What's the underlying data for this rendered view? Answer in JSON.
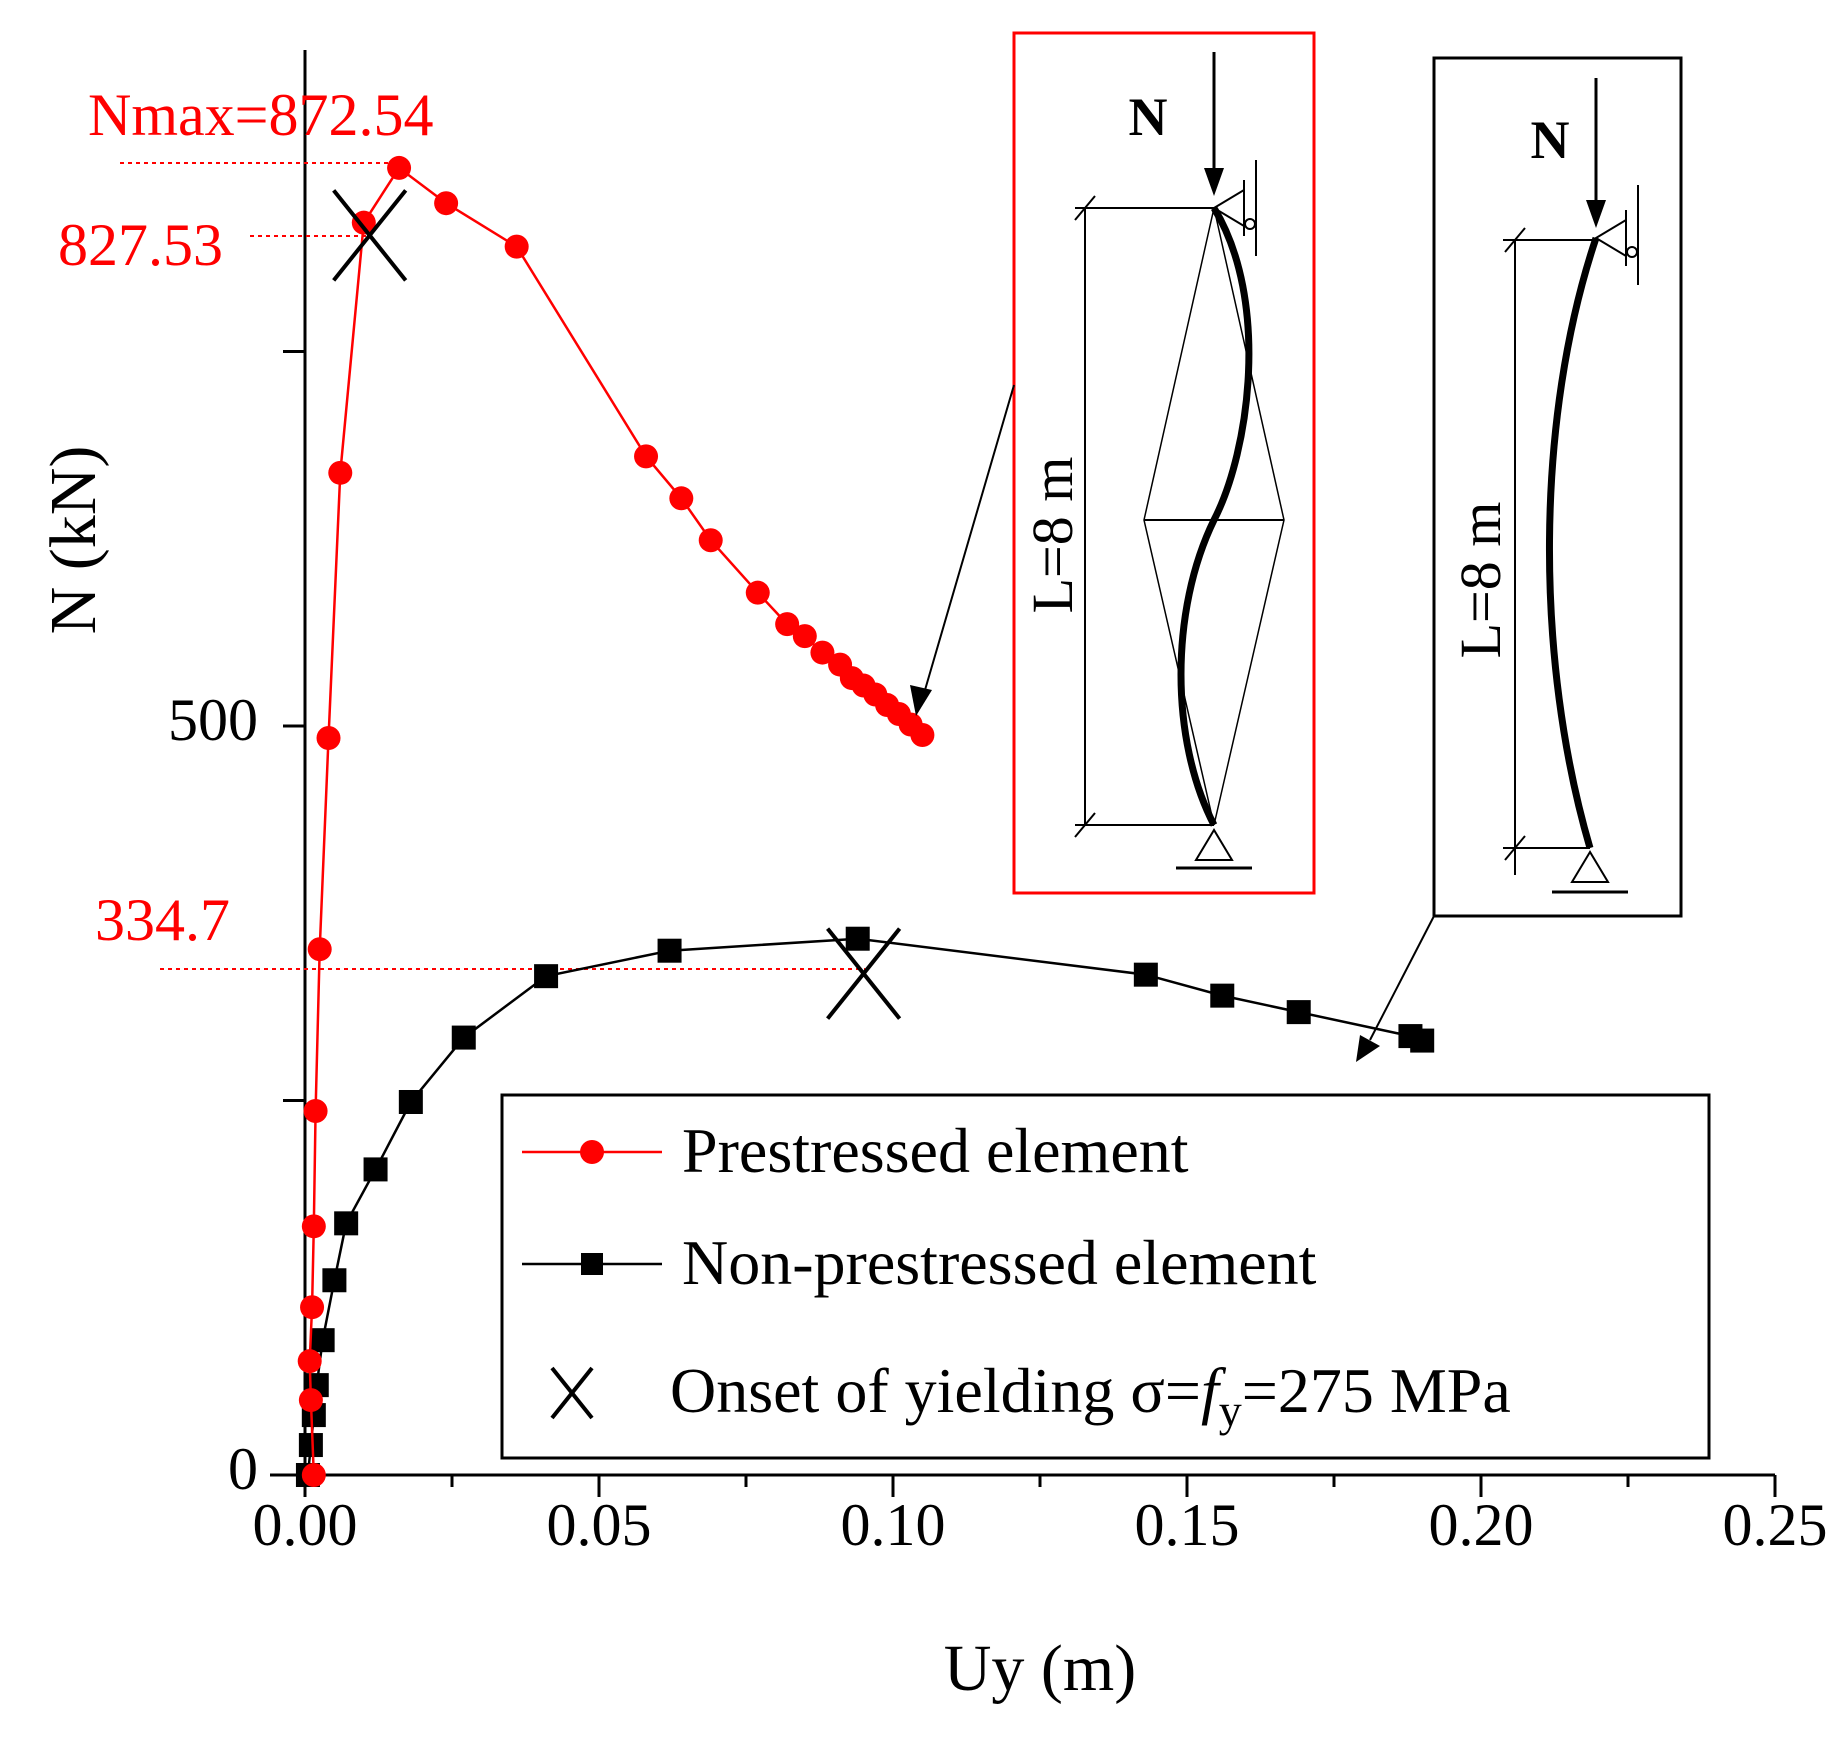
{
  "chart_data": {
    "type": "line",
    "xlabel": "Uy (m)",
    "ylabel": "N (kN)",
    "xlim": [
      0,
      0.25
    ],
    "ylim": [
      0,
      1000
    ],
    "x_ticks": [
      "0.00",
      "0.05",
      "0.10",
      "0.15",
      "0.20",
      "0.25"
    ],
    "y_ticks": [
      "0",
      "500"
    ],
    "series": [
      {
        "name": "Prestressed element",
        "color": "#ff0000",
        "marker": "circle",
        "points": [
          [
            0.0015,
            0
          ],
          [
            0.001,
            50
          ],
          [
            0.0008,
            76
          ],
          [
            0.0012,
            112
          ],
          [
            0.0015,
            166
          ],
          [
            0.0018,
            243
          ],
          [
            0.0025,
            351
          ],
          [
            0.004,
            492
          ],
          [
            0.006,
            669
          ],
          [
            0.01,
            836
          ],
          [
            0.016,
            872.54
          ],
          [
            0.024,
            849
          ],
          [
            0.036,
            820
          ],
          [
            0.058,
            680
          ],
          [
            0.064,
            652
          ],
          [
            0.069,
            624
          ],
          [
            0.077,
            589
          ],
          [
            0.082,
            568
          ],
          [
            0.085,
            560
          ],
          [
            0.088,
            549
          ],
          [
            0.091,
            541
          ],
          [
            0.093,
            532
          ],
          [
            0.095,
            527
          ],
          [
            0.097,
            521
          ],
          [
            0.099,
            514
          ],
          [
            0.101,
            508
          ],
          [
            0.103,
            501
          ],
          [
            0.105,
            494
          ]
        ]
      },
      {
        "name": "Non-prestressed element",
        "color": "#000000",
        "marker": "square",
        "points": [
          [
            0.0005,
            0
          ],
          [
            0.001,
            20
          ],
          [
            0.0015,
            40
          ],
          [
            0.002,
            60
          ],
          [
            0.003,
            90
          ],
          [
            0.005,
            130
          ],
          [
            0.007,
            168
          ],
          [
            0.012,
            204
          ],
          [
            0.018,
            249
          ],
          [
            0.027,
            292
          ],
          [
            0.041,
            333
          ],
          [
            0.062,
            350
          ],
          [
            0.094,
            358
          ],
          [
            0.143,
            334
          ],
          [
            0.156,
            320
          ],
          [
            0.169,
            309
          ],
          [
            0.188,
            293
          ],
          [
            0.19,
            290
          ]
        ]
      }
    ],
    "yield_points": [
      {
        "x": 0.011,
        "y": 827.53,
        "label": "827.53"
      },
      {
        "x": 0.095,
        "y": 334.7,
        "label": "334.7"
      }
    ],
    "annotations": {
      "nmax": "Nmax=872.54",
      "yield_prestressed": "827.53",
      "yield_nonprestressed": "334.7"
    },
    "legend": {
      "placement": "bottom-right",
      "entries": [
        "Prestressed element",
        "Non-prestressed element",
        "Onset of yielding σ=",
        "f",
        "y",
        "=275 MPa"
      ]
    },
    "insets": {
      "prestressed": {
        "force": "N",
        "length": "L=8 m",
        "border": "#ff0000"
      },
      "nonprestressed": {
        "force": "N",
        "length": "L=8 m",
        "border": "#000000"
      }
    }
  }
}
